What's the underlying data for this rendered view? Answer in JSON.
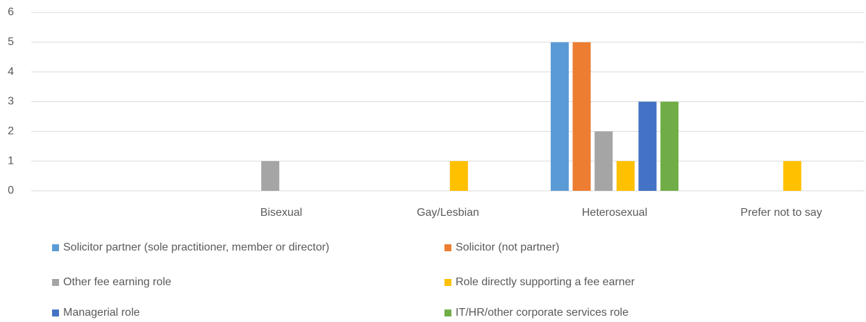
{
  "chart_data": {
    "type": "bar",
    "categories": [
      null,
      "Bisexual",
      "Gay/Lesbian",
      "Heterosexual",
      "Prefer not to say"
    ],
    "series": [
      {
        "name": "Solicitor partner (sole practitioner, member or director)",
        "color": "#5b9bd5",
        "values": [
          0,
          0,
          0,
          5,
          0
        ]
      },
      {
        "name": "Solicitor (not partner)",
        "color": "#ed7d31",
        "values": [
          0,
          0,
          0,
          5,
          0
        ]
      },
      {
        "name": "Other fee earning role",
        "color": "#a5a5a5",
        "values": [
          0,
          1,
          0,
          2,
          0
        ]
      },
      {
        "name": "Role directly supporting a fee earner",
        "color": "#ffc000",
        "values": [
          0,
          0,
          1,
          1,
          1
        ]
      },
      {
        "name": "Managerial role",
        "color": "#4472c4",
        "values": [
          0,
          0,
          0,
          3,
          0
        ]
      },
      {
        "name": "IT/HR/other corporate services role",
        "color": "#70ad47",
        "values": [
          0,
          0,
          0,
          3,
          0
        ]
      }
    ],
    "ylim": [
      0,
      6
    ],
    "yticks": [
      0,
      1,
      2,
      3,
      4,
      5,
      6
    ],
    "grid": true,
    "legend": "bottom"
  }
}
